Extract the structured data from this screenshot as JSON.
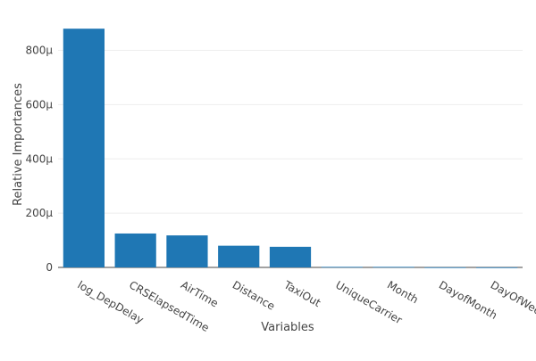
{
  "chart_data": {
    "type": "bar",
    "xlabel": "Variables",
    "ylabel": "Relative Importances",
    "ylim": [
      0,
      0.00092
    ],
    "yticks": [
      0,
      0.0002,
      0.0004,
      0.0006,
      0.0008
    ],
    "ytick_labels": [
      "0",
      "200μ",
      "400μ",
      "600μ",
      "800μ"
    ],
    "categories": [
      "log_DepDelay",
      "CRSElapsedTime",
      "AirTime",
      "Distance",
      "TaxiOut",
      "UniqueCarrier",
      "Month",
      "DayofMonth",
      "DayOfWeek"
    ],
    "values": [
      0.00088,
      0.000125,
      0.000118,
      8e-05,
      7.6e-05,
      2e-06,
      2e-06,
      5e-07,
      3e-07
    ],
    "bar_color": "#1f77b4",
    "grid": true,
    "legend": "none"
  }
}
